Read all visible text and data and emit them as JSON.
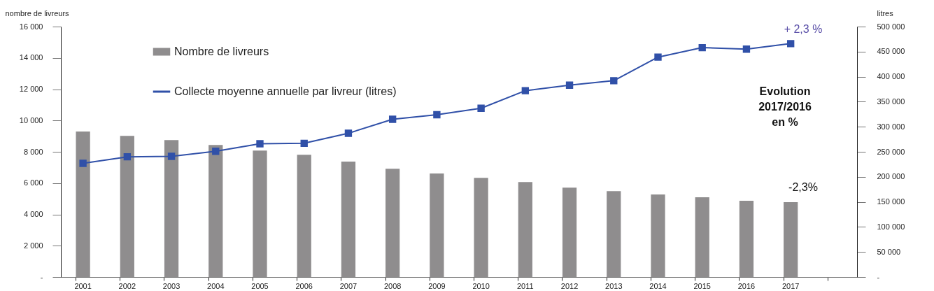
{
  "chart_data": {
    "type": "bar",
    "categories": [
      "2001",
      "2002",
      "2003",
      "2004",
      "2005",
      "2006",
      "2007",
      "2008",
      "2009",
      "2010",
      "2011",
      "2012",
      "2013",
      "2014",
      "2015",
      "2016",
      "2017",
      null
    ],
    "ylabel": "nombre de livreurs",
    "y2label": "litres",
    "ylim": [
      0,
      16000
    ],
    "yticks": [
      {
        "value": 0,
        "label": "-"
      },
      {
        "value": 2000,
        "label": "2 000"
      },
      {
        "value": 4000,
        "label": "4 000"
      },
      {
        "value": 6000,
        "label": "6 000"
      },
      {
        "value": 8000,
        "label": "8 000"
      },
      {
        "value": 10000,
        "label": "10 000"
      },
      {
        "value": 12000,
        "label": "12 000"
      },
      {
        "value": 14000,
        "label": "14 000"
      },
      {
        "value": 16000,
        "label": "16 000"
      }
    ],
    "y2lim": [
      0,
      500000
    ],
    "y2ticks": [
      {
        "value": 0,
        "label": "-"
      },
      {
        "value": 50000,
        "label": "50 000"
      },
      {
        "value": 100000,
        "label": "100 000"
      },
      {
        "value": 150000,
        "label": "150 000"
      },
      {
        "value": 200000,
        "label": "200 000"
      },
      {
        "value": 250000,
        "label": "250 000"
      },
      {
        "value": 300000,
        "label": "300 000"
      },
      {
        "value": 350000,
        "label": "350 000"
      },
      {
        "value": 400000,
        "label": "400 000"
      },
      {
        "value": 450000,
        "label": "450 000"
      },
      {
        "value": 500000,
        "label": "500 000"
      }
    ],
    "series": [
      {
        "name": "Nombre de livreurs",
        "color": "#8f8d8e",
        "values": [
          9300,
          9020,
          8750,
          8440,
          8080,
          7810,
          7370,
          6920,
          6610,
          6340,
          6070,
          5710,
          5490,
          5270,
          5090,
          4870,
          4780,
          null
        ]
      },
      {
        "name": "Collecte moyenne annuelle par livreur (litres)",
        "type": "line",
        "axis": "y2",
        "color": "#3050a8",
        "values": [
          227000,
          240000,
          241000,
          251000,
          266000,
          267000,
          287000,
          315000,
          324000,
          337000,
          372000,
          383000,
          392000,
          439000,
          458000,
          455000,
          466000,
          null
        ]
      }
    ],
    "marker": "square",
    "legend": "top left",
    "grid": false,
    "annotations": [
      "+ 2,3 %",
      "-2,3%",
      "Evolution 2017/2016 en %"
    ]
  }
}
